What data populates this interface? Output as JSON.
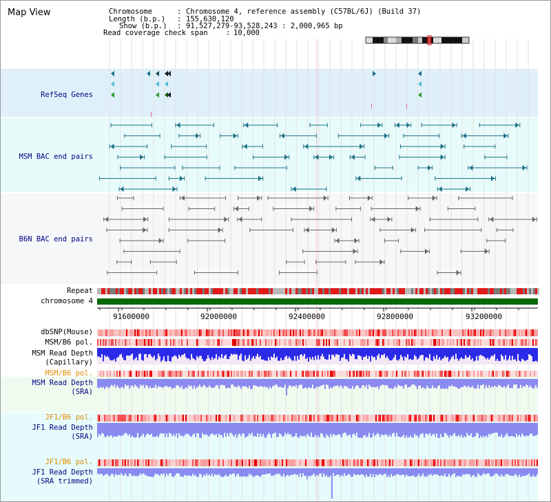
{
  "title": "Map View",
  "info": {
    "chromosome_label": "Chromosome",
    "chromosome_value": "Chromosome 4, reference assembly (C57BL/6J) (Build 37)",
    "length_label": "Length (b.p.)",
    "length_value": "155,630,120",
    "show_label": "Show (b.p.)",
    "show_value": "91,527,279-93,528,243 : 2,000,965 bp",
    "coverage_label": "Read coverage check span",
    "coverage_value": "10,000"
  },
  "tracks": {
    "refseq": "RefSeq Genes",
    "msm_bac": "MSM BAC end pairs",
    "b6n_bac": "B6N BAC end pairs",
    "repeat": "Repeat",
    "chromosome": "chromosome 4",
    "dbsnp": "dbSNP(Mouse)",
    "msm_b6_pol_1": "MSM/B6 pol.",
    "msm_read_depth_cap_1": "MSM Read Depth",
    "msm_read_depth_cap_2": "(Capillary)",
    "msm_b6_pol_2": "MSM/B6 pol.",
    "msm_read_depth_sra_1": "MSM Read Depth",
    "msm_read_depth_sra_2": "(SRA)",
    "jf1_b6_pol_1": "JF1/B6 pol.",
    "jf1_read_depth_sra_1": "JF1 Read Depth",
    "jf1_read_depth_sra_2": "(SRA)",
    "jf1_b6_pol_2": "JF1/B6 pol.",
    "jf1_read_depth_trim_1": "JF1 Read Depth",
    "jf1_read_depth_trim_2": "(SRA trimmed)"
  },
  "axis": {
    "ticks": [
      "91600000",
      "92000000",
      "92400000",
      "92800000",
      "93200000"
    ]
  },
  "colors": {
    "refseq_bg": "#dff0fa",
    "bac_bg": "#e8fbfb",
    "b6n_bg": "#f5f7f8",
    "msm_cyan": "#1b6f87",
    "b6n_gray": "#666666",
    "chromosome_green": "#0a6a0a",
    "depth_blue": "#2a2ae8",
    "depth_lightblue": "#8a8af0",
    "sra_bg": "#effbef",
    "jf1_bg": "#e6fbfb"
  }
}
